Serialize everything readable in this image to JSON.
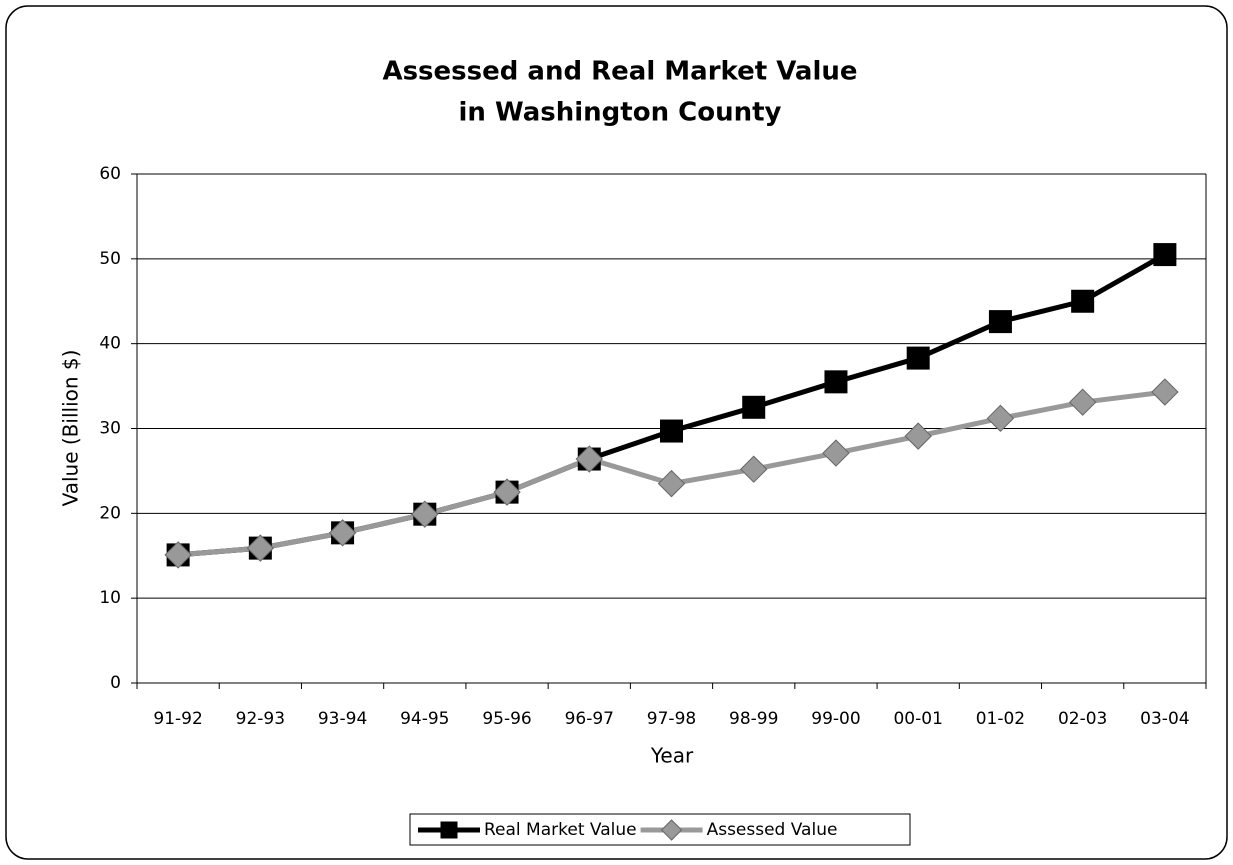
{
  "chart_data": {
    "type": "line",
    "title": "Assessed and Real Market Value",
    "subtitle": "in Washington County",
    "x_label": "Year",
    "y_label": "Value (Billion $)",
    "categories": [
      "91-92",
      "92-93",
      "93-94",
      "94-95",
      "95-96",
      "96-97",
      "97-98",
      "98-99",
      "99-00",
      "00-01",
      "01-02",
      "02-03",
      "03-04"
    ],
    "series": [
      {
        "name": "Real Market Value",
        "color": "#000000",
        "marker": "square",
        "values": [
          15.1,
          15.9,
          17.7,
          19.9,
          22.5,
          26.4,
          29.7,
          32.5,
          35.5,
          38.3,
          42.6,
          45.0,
          50.5
        ]
      },
      {
        "name": "Assessed Value",
        "color": "#999999",
        "marker": "diamond",
        "values": [
          15.1,
          15.9,
          17.7,
          19.9,
          22.5,
          26.4,
          23.5,
          25.2,
          27.1,
          29.1,
          31.2,
          33.1,
          34.3
        ]
      }
    ],
    "ylim": [
      0,
      60
    ],
    "yticks": [
      0,
      10,
      20,
      30,
      40,
      50,
      60
    ],
    "grid": true,
    "legend": "bottom"
  }
}
